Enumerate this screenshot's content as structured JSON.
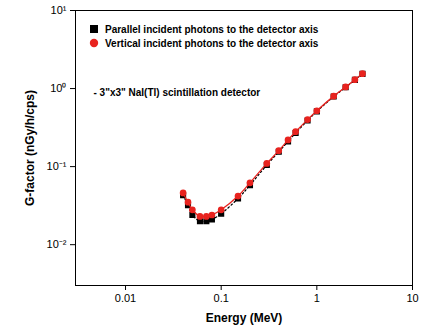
{
  "chart_data": {
    "type": "scatter",
    "annotation": "- 3\"x3\" NaI(Tl) scintillation detector",
    "x_label": "Energy (MeV)",
    "y_label": "G-factor (nGy/h/cps)",
    "log": true,
    "legend": "upper left",
    "xlim": [
      0.003,
      10
    ],
    "xticks": [
      0.01,
      0.1,
      1,
      10
    ],
    "ylim": [
      0.003,
      10
    ],
    "yticks": [
      {
        "value": 0.01,
        "label": "10⁻²"
      },
      {
        "value": 0.1,
        "label": "10⁻¹"
      },
      {
        "value": 1,
        "label": "10⁰"
      },
      {
        "value": 10,
        "label": "10¹"
      }
    ],
    "x": [
      0.04,
      0.045,
      0.05,
      0.06,
      0.07,
      0.08,
      0.1,
      0.15,
      0.2,
      0.3,
      0.4,
      0.5,
      0.6,
      0.8,
      1,
      1.5,
      2,
      2.5,
      3
    ],
    "series": [
      {
        "name": "Parallel incident photons to the detector axis",
        "color": "#000000",
        "marker": "square",
        "line_style": "dotted",
        "values": [
          0.043,
          0.032,
          0.024,
          0.02,
          0.02,
          0.021,
          0.025,
          0.039,
          0.058,
          0.105,
          0.155,
          0.21,
          0.27,
          0.39,
          0.51,
          0.79,
          1.04,
          1.29,
          1.54
        ]
      },
      {
        "name": "Vertical incident photons to the detector axis",
        "color": "#e8231f",
        "marker": "circle",
        "line_style": "solid",
        "values": [
          0.046,
          0.035,
          0.028,
          0.023,
          0.023,
          0.024,
          0.028,
          0.042,
          0.062,
          0.11,
          0.16,
          0.22,
          0.28,
          0.4,
          0.52,
          0.8,
          1.05,
          1.3,
          1.55
        ]
      }
    ]
  }
}
